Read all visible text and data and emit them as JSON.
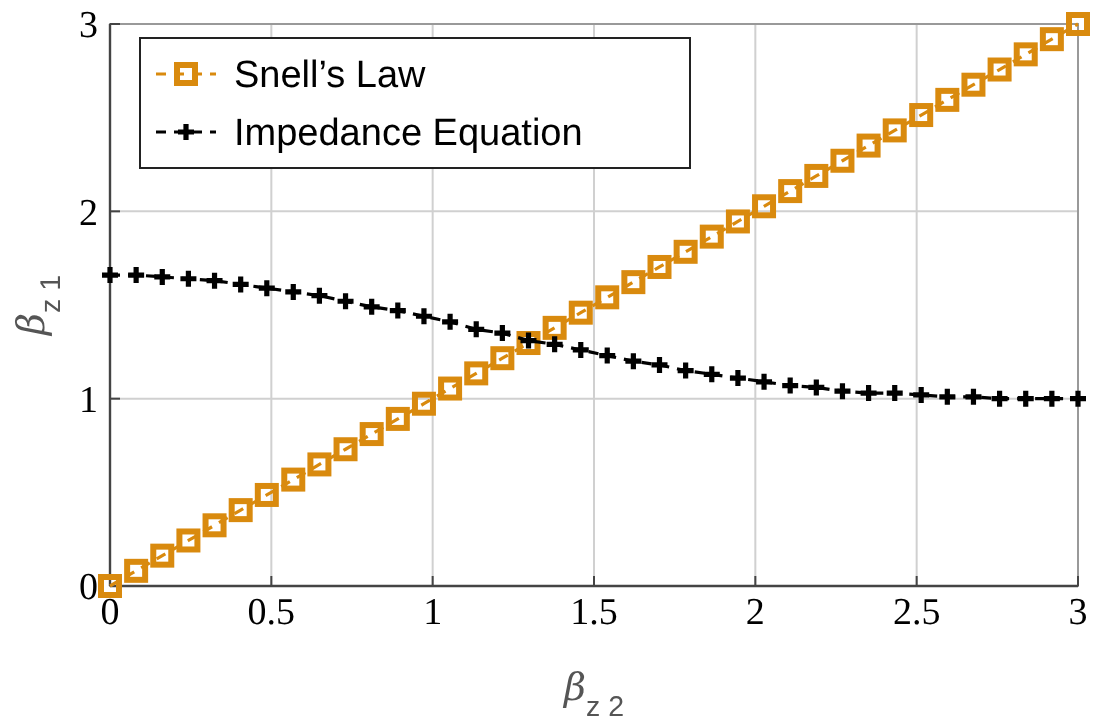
{
  "chart_data": {
    "type": "line",
    "xlabel": "β$_{z 2}$",
    "ylabel": "β$_{z 1}$",
    "x": [
      0,
      0.081,
      0.162,
      0.243,
      0.324,
      0.405,
      0.486,
      0.568,
      0.649,
      0.73,
      0.811,
      0.892,
      0.973,
      1.054,
      1.135,
      1.216,
      1.297,
      1.378,
      1.459,
      1.541,
      1.622,
      1.703,
      1.784,
      1.865,
      1.946,
      2.027,
      2.108,
      2.189,
      2.27,
      2.351,
      2.432,
      2.514,
      2.595,
      2.676,
      2.757,
      2.838,
      2.919,
      3
    ],
    "series": [
      {
        "name": "Snell’s Law",
        "color": "#d98a0e",
        "marker": "square",
        "line_style": "dashed",
        "values": [
          0,
          0.081,
          0.162,
          0.243,
          0.324,
          0.405,
          0.486,
          0.568,
          0.649,
          0.73,
          0.811,
          0.892,
          0.973,
          1.054,
          1.135,
          1.216,
          1.297,
          1.378,
          1.459,
          1.541,
          1.622,
          1.703,
          1.784,
          1.865,
          1.946,
          2.027,
          2.108,
          2.189,
          2.27,
          2.351,
          2.432,
          2.514,
          2.595,
          2.676,
          2.757,
          2.838,
          2.919,
          3
        ]
      },
      {
        "name": "Impedance Equation",
        "color": "#000000",
        "marker": "cross",
        "line_style": "dashed",
        "values": [
          1.66,
          1.66,
          1.65,
          1.64,
          1.63,
          1.61,
          1.59,
          1.57,
          1.55,
          1.52,
          1.49,
          1.47,
          1.44,
          1.41,
          1.37,
          1.35,
          1.31,
          1.29,
          1.26,
          1.23,
          1.2,
          1.18,
          1.15,
          1.13,
          1.11,
          1.09,
          1.07,
          1.06,
          1.04,
          1.03,
          1.03,
          1.02,
          1.01,
          1.01,
          1.0,
          1.0,
          1.0,
          1.0
        ]
      }
    ],
    "xlim": [
      0,
      3
    ],
    "ylim": [
      0,
      3
    ],
    "xticks": [
      0,
      0.5,
      1,
      1.5,
      2,
      2.5,
      3
    ],
    "yticks": [
      0,
      1,
      2,
      3
    ],
    "grid": true,
    "legend": "top left"
  }
}
